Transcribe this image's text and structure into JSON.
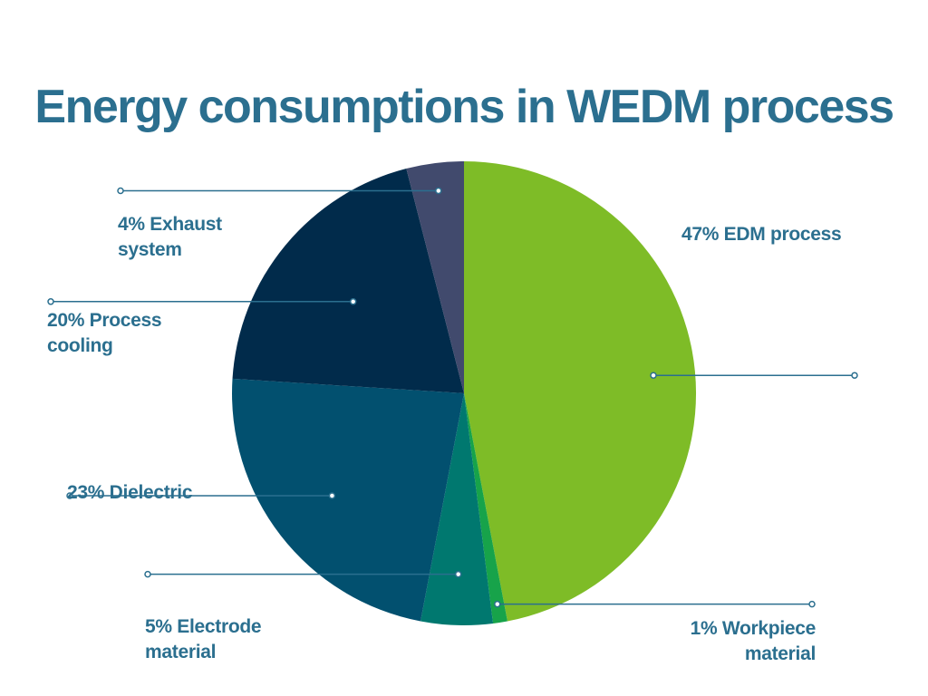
{
  "title": "Energy consumptions in WEDM process",
  "colors": {
    "title": "#2b6f8f",
    "label": "#2b6f8f",
    "leader": "#2b6f8f"
  },
  "chart_data": {
    "type": "pie",
    "title": "Energy consumptions in WEDM process",
    "start_angle_deg": 0,
    "direction": "clockwise",
    "legend": "none (callout labels with leader lines)",
    "slices": [
      {
        "label": "EDM process",
        "value": 47,
        "value_text": "47%",
        "label_text": "47% EDM process",
        "color": "#7ebc27"
      },
      {
        "label": "Workpiece material",
        "value": 1,
        "value_text": "1%",
        "label_text": "1% Workpiece material",
        "color": "#17a34a"
      },
      {
        "label": "Electrode material",
        "value": 5,
        "value_text": "5%",
        "label_text": "5% Electrode material",
        "color": "#00786f"
      },
      {
        "label": "Dielectric",
        "value": 23,
        "value_text": "23%",
        "label_text": "23% Dielectric",
        "color": "#02506f"
      },
      {
        "label": "Process cooling",
        "value": 20,
        "value_text": "20%",
        "label_text": "20% Process cooling",
        "color": "#012b4b"
      },
      {
        "label": "Exhaust system",
        "value": 4,
        "value_text": "4%",
        "label_text": "4% Exhaust system",
        "color": "#414a6d"
      }
    ]
  }
}
